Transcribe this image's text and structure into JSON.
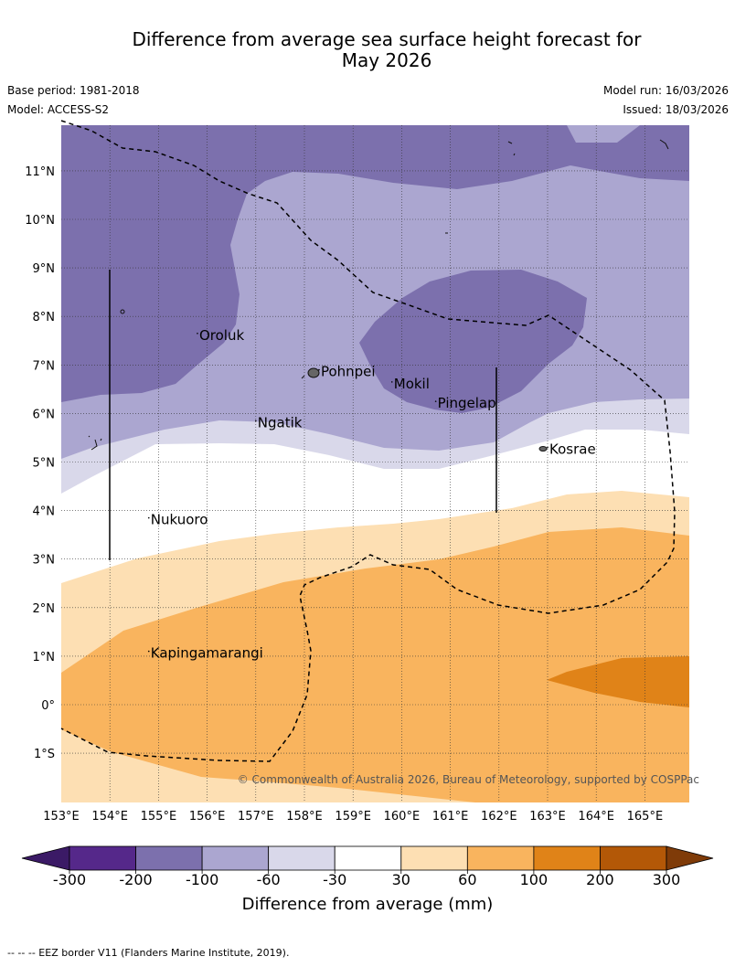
{
  "header": {
    "title_line1": "Difference from average sea surface height forecast for",
    "title_line2": "May 2026",
    "base_period": "Base period: 1981-2018",
    "model": "Model: ACCESS-S2",
    "model_run": "Model run: 16/03/2026",
    "issued": "Issued: 18/03/2026"
  },
  "map": {
    "lat_labels": [
      "11°N",
      "10°N",
      "9°N",
      "8°N",
      "7°N",
      "6°N",
      "5°N",
      "4°N",
      "3°N",
      "2°N",
      "1°N",
      "0°",
      "1°S"
    ],
    "lat_values": [
      11,
      10,
      9,
      8,
      7,
      6,
      5,
      4,
      3,
      2,
      1,
      0,
      -1
    ],
    "lon_labels": [
      "153°E",
      "154°E",
      "155°E",
      "156°E",
      "157°E",
      "158°E",
      "159°E",
      "160°E",
      "161°E",
      "162°E",
      "163°E",
      "164°E",
      "165°E"
    ],
    "lon_values": [
      153,
      154,
      155,
      156,
      157,
      158,
      159,
      160,
      161,
      162,
      163,
      164,
      165
    ],
    "places": [
      {
        "name": "Oroluk",
        "lon": 155.8,
        "lat": 7.65
      },
      {
        "name": "Pohnpei",
        "lon": 158.3,
        "lat": 6.9
      },
      {
        "name": "Mokil",
        "lon": 159.8,
        "lat": 6.65
      },
      {
        "name": "Pingelap",
        "lon": 160.7,
        "lat": 6.25
      },
      {
        "name": "Ngatik",
        "lon": 157.0,
        "lat": 5.85
      },
      {
        "name": "Kosrae",
        "lon": 163.0,
        "lat": 5.3
      },
      {
        "name": "Nukuoro",
        "lon": 154.8,
        "lat": 3.85
      },
      {
        "name": "Kapingamarangi",
        "lon": 154.8,
        "lat": 1.1
      }
    ],
    "copyright": "© Commonwealth of Australia 2026, Bureau of Meteorology, supported by COSPPac"
  },
  "legend": {
    "tick_labels": [
      "-300",
      "-200",
      "-100",
      "-60",
      "-30",
      "30",
      "60",
      "100",
      "200",
      "300"
    ],
    "colors": [
      "#3b1a66",
      "#55288a",
      "#7c70ad",
      "#aba6d0",
      "#d9d8ea",
      "#ffffff",
      "#fddfb3",
      "#f9b45e",
      "#e08318",
      "#b35807",
      "#7f3b08"
    ],
    "title": "Difference from average (mm)"
  },
  "footer": {
    "eez_note": "-- -- -- EEZ border V11 (Flanders Marine Institute, 2019)."
  }
}
